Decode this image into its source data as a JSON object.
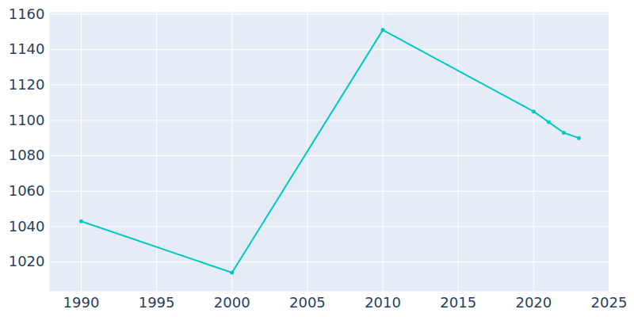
{
  "chart_data": {
    "type": "line",
    "x": [
      1990,
      2000,
      2010,
      2020,
      2021,
      2022,
      2023
    ],
    "values": [
      1043,
      1014,
      1151,
      1105,
      1099,
      1093,
      1090
    ],
    "color": "#00c8c8",
    "marker": "circle",
    "xlim": [
      1987.9,
      2025
    ],
    "xticks": [
      1990,
      1995,
      2000,
      2005,
      2010,
      2015,
      2020,
      2025
    ],
    "ylim": [
      1003.5,
      1161
    ],
    "yticks": [
      1020,
      1040,
      1060,
      1080,
      1100,
      1120,
      1140,
      1160
    ],
    "grid": true
  }
}
